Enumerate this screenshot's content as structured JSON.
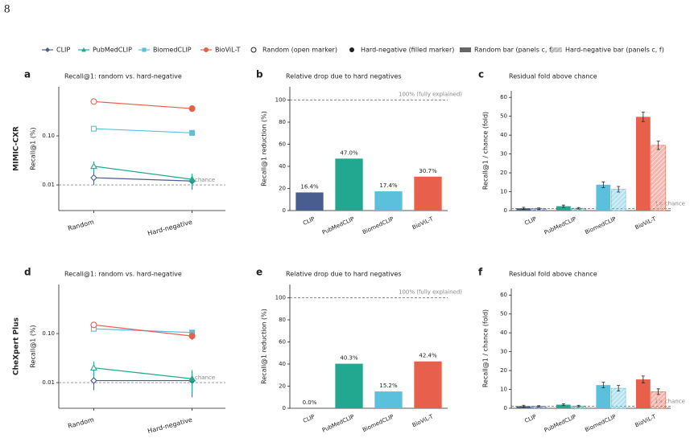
{
  "page_number": "8",
  "row_labels": [
    "MIMIC-CXR",
    "CheXpert Plus"
  ],
  "legend": [
    {
      "label": "CLIP",
      "color": "#4a5d8f",
      "marker": "diamond"
    },
    {
      "label": "PubMedCLIP",
      "color": "#22a890",
      "marker": "triangle"
    },
    {
      "label": "BiomedCLIP",
      "color": "#5bc0dc",
      "marker": "square"
    },
    {
      "label": "BioViL-T",
      "color": "#e8604c",
      "marker": "circle"
    },
    {
      "label": "Random (open marker)",
      "color": "#222222",
      "marker": "open-circle"
    },
    {
      "label": "Hard-negative (filled marker)",
      "color": "#222222",
      "marker": "filled-circle"
    },
    {
      "label": "Random bar (panels c, f)",
      "color": "#666666",
      "marker": "bar"
    },
    {
      "label": "Hard-negative bar (panels c, f)",
      "color": "#bbbbbb",
      "marker": "hatched-bar"
    }
  ],
  "chart_data": [
    {
      "type": "line",
      "panel": "a",
      "title": "Recall@1: random vs. hard-negative",
      "ylabel": "Recall@1 (%)",
      "log_y": true,
      "categories": [
        "Random",
        "Hard-negative"
      ],
      "series": [
        {
          "color": "#4a5d8f",
          "marker": "diamond",
          "values": [
            0.014,
            0.012
          ],
          "errors": [
            0.004,
            0.004
          ]
        },
        {
          "color": "#22a890",
          "marker": "triangle",
          "values": [
            0.024,
            0.013
          ],
          "errors": [
            0.006,
            0.004
          ]
        },
        {
          "color": "#5bc0dc",
          "marker": "square",
          "values": [
            0.14,
            0.115
          ],
          "errors": [
            0.005,
            0.01
          ]
        },
        {
          "color": "#e8604c",
          "marker": "circle",
          "values": [
            0.5,
            0.36
          ],
          "errors": [
            0.01,
            0.015
          ]
        }
      ],
      "ylim": [
        0.003,
        1
      ],
      "yticks": [
        0.01,
        {
          "value": 0.1,
          "label": "0.10"
        }
      ],
      "reference_line": {
        "value": 0.01,
        "label": "chance"
      }
    },
    {
      "type": "bar",
      "panel": "b",
      "title": "Relative drop due to hard negatives",
      "ylabel": "Recall@1 reduction (%)",
      "categories": [
        "CLIP",
        "PubMedCLIP",
        "BiomedCLIP",
        "BioViL-T"
      ],
      "colors": [
        "#4a5d8f",
        "#22a890",
        "#5bc0dc",
        "#e8604c"
      ],
      "values": [
        16.4,
        47.0,
        17.4,
        30.7
      ],
      "value_labels": [
        "16.4%",
        "47.0%",
        "17.4%",
        "30.7%"
      ],
      "ylim": [
        0,
        112
      ],
      "yticks": [
        0,
        20,
        40,
        60,
        80,
        100
      ],
      "reference_line": {
        "value": 100,
        "label": "100% (fully explained)"
      }
    },
    {
      "type": "grouped-bar",
      "panel": "c",
      "title": "Residual fold above chance",
      "ylabel": "Recall@1 / chance (fold)",
      "categories": [
        "CLIP",
        "PubMedCLIP",
        "BiomedCLIP",
        "BioViL-T"
      ],
      "colors": [
        "#4a5d8f",
        "#22a890",
        "#5bc0dc",
        "#e8604c"
      ],
      "series": [
        {
          "pattern": "solid",
          "values": [
            1.2,
            2.3,
            13.7,
            49.7
          ],
          "errors": [
            0.5,
            0.6,
            1.5,
            2.5
          ]
        },
        {
          "pattern": "hatched",
          "values": [
            1.0,
            1.2,
            11.3,
            34.6
          ],
          "errors": [
            0.4,
            0.4,
            1.5,
            2.2
          ]
        }
      ],
      "ylim": [
        0,
        63.5
      ],
      "yticks": [
        0,
        10,
        20,
        30,
        40,
        50,
        60
      ],
      "reference_line": {
        "value": 1,
        "label": "1× chance"
      }
    },
    {
      "type": "line",
      "panel": "d",
      "title": "Recall@1: random vs. hard-negative",
      "ylabel": "Recall@1 (%)",
      "log_y": true,
      "categories": [
        "Random",
        "Hard-negative"
      ],
      "series": [
        {
          "color": "#4a5d8f",
          "marker": "diamond",
          "values": [
            0.011,
            0.011
          ],
          "errors": [
            0.004,
            0.006
          ]
        },
        {
          "color": "#22a890",
          "marker": "triangle",
          "values": [
            0.02,
            0.012
          ],
          "errors": [
            0.007,
            0.006
          ]
        },
        {
          "color": "#5bc0dc",
          "marker": "square",
          "values": [
            0.125,
            0.105
          ],
          "errors": [
            0.005,
            0.01
          ]
        },
        {
          "color": "#e8604c",
          "marker": "circle",
          "values": [
            0.15,
            0.089
          ],
          "errors": [
            0.008,
            0.015
          ]
        }
      ],
      "ylim": [
        0.003,
        1
      ],
      "yticks": [
        0.01,
        {
          "value": 0.1,
          "label": "0.10"
        }
      ],
      "reference_line": {
        "value": 0.01,
        "label": "chance"
      }
    },
    {
      "type": "bar",
      "panel": "e",
      "title": "Relative drop due to hard negatives",
      "ylabel": "Recall@1 reduction (%)",
      "categories": [
        "CLIP",
        "PubMedCLIP",
        "BiomedCLIP",
        "BioViL-T"
      ],
      "colors": [
        "#4a5d8f",
        "#22a890",
        "#5bc0dc",
        "#e8604c"
      ],
      "values": [
        0.0,
        40.3,
        15.2,
        42.4
      ],
      "value_labels": [
        "0.0%",
        "40.3%",
        "15.2%",
        "42.4%"
      ],
      "ylim": [
        0,
        112
      ],
      "yticks": [
        0,
        20,
        40,
        60,
        80,
        100
      ],
      "reference_line": {
        "value": 100,
        "label": "100% (fully explained)"
      }
    },
    {
      "type": "grouped-bar",
      "panel": "f",
      "title": "Residual fold above chance",
      "ylabel": "Recall@1 / chance (fold)",
      "categories": [
        "CLIP",
        "PubMedCLIP",
        "BiomedCLIP",
        "BioViL-T"
      ],
      "colors": [
        "#4a5d8f",
        "#22a890",
        "#5bc0dc",
        "#e8604c"
      ],
      "series": [
        {
          "pattern": "solid",
          "values": [
            1.1,
            1.9,
            12.3,
            15.3
          ],
          "errors": [
            0.5,
            0.5,
            1.5,
            1.8
          ]
        },
        {
          "pattern": "hatched",
          "values": [
            1.0,
            1.2,
            10.6,
            8.8
          ],
          "errors": [
            0.4,
            0.4,
            1.5,
            1.5
          ]
        }
      ],
      "ylim": [
        0,
        63.5
      ],
      "yticks": [
        0,
        10,
        20,
        30,
        40,
        50,
        60
      ],
      "reference_line": {
        "value": 1,
        "label": "1× chance"
      }
    }
  ]
}
